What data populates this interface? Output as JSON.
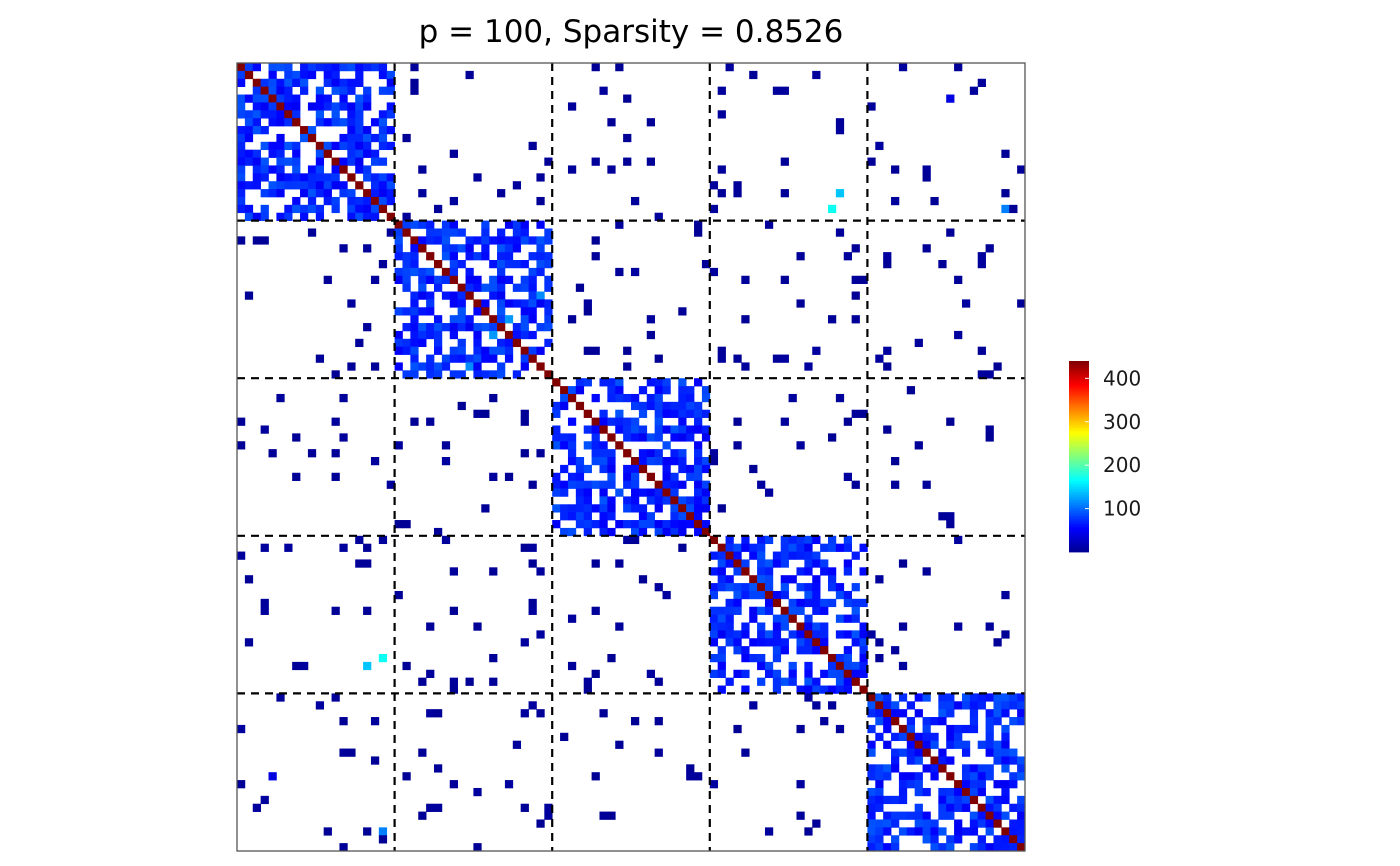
{
  "chart_data": {
    "type": "heatmap",
    "title": "p = 100, Sparsity = 0.8526",
    "p": 100,
    "sparsity": 0.8526,
    "n_blocks": 5,
    "block_size": 20,
    "grid": false,
    "block_separators": "dashed",
    "colorscale": {
      "type": "jet",
      "min": 0,
      "max": 440,
      "ticks": [
        100,
        200,
        300,
        400
      ],
      "tick_labels": [
        "100",
        "200",
        "300",
        "400"
      ],
      "colors": [
        "#00008f",
        "#0000ff",
        "#0080ff",
        "#00ffff",
        "#80ff80",
        "#ffff00",
        "#ff8000",
        "#ff0000",
        "#800000"
      ]
    },
    "legend_placement": "right",
    "diagonal_value": 440,
    "within_block_nonzero_fraction": 0.62,
    "within_block_typical_value": 70,
    "off_block_nonzero_fraction": 0.04,
    "off_block_typical_value": 5,
    "highlighted_cells": [
      {
        "row": 16,
        "col": 76,
        "value": 140
      },
      {
        "row": 18,
        "col": 75,
        "value": 170
      },
      {
        "row": 18,
        "col": 97,
        "value": 110
      },
      {
        "row": 75,
        "col": 18,
        "value": 170
      },
      {
        "row": 76,
        "col": 16,
        "value": 140
      },
      {
        "row": 97,
        "col": 18,
        "value": 110
      },
      {
        "row": 4,
        "col": 90,
        "value": 40
      },
      {
        "row": 90,
        "col": 4,
        "value": 40
      },
      {
        "row": 32,
        "col": 34,
        "value": 120
      },
      {
        "row": 34,
        "col": 32,
        "value": 120
      },
      {
        "row": 38,
        "col": 29,
        "value": 115
      },
      {
        "row": 29,
        "col": 38,
        "value": 115
      }
    ]
  }
}
